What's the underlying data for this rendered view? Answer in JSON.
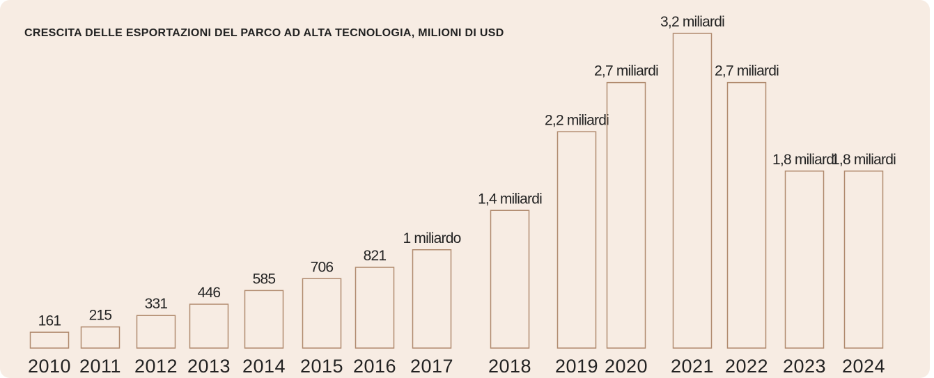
{
  "chart_data": {
    "type": "bar",
    "title": "CRESCITA DELLE ESPORTAZIONI DEL PARCO AD ALTA TECNOLOGIA, MILIONI DI USD",
    "categories": [
      "2010",
      "2011",
      "2012",
      "2013",
      "2014",
      "2015",
      "2016",
      "2017",
      "2018",
      "2019",
      "2020",
      "2021",
      "2022",
      "2023",
      "2024"
    ],
    "values": [
      161,
      215,
      331,
      446,
      585,
      706,
      821,
      1000,
      1400,
      2200,
      2700,
      3200,
      2700,
      1800,
      1800
    ],
    "value_labels": [
      "161",
      "215",
      "331",
      "446",
      "585",
      "706",
      "821",
      "1 miliardo",
      "1,4 miliardi",
      "2,2 miliardi",
      "2,7 miliardi",
      "3,2 miliardi",
      "2,7 miliardi",
      "1,8 miliardi",
      "1,8 miliardi"
    ],
    "color": "#b08a6e"
  }
}
